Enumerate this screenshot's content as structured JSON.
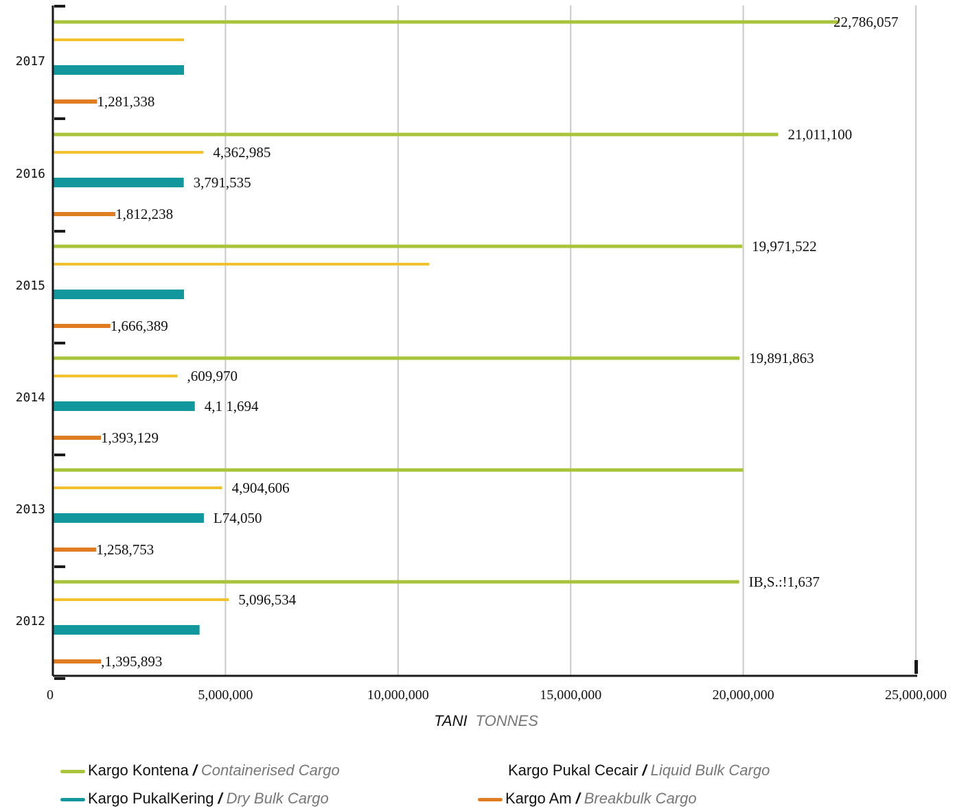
{
  "chart_data": {
    "type": "bar",
    "orientation": "horizontal",
    "categories": [
      "2017",
      "2016",
      "2015",
      "2014",
      "2013",
      "2012"
    ],
    "series": [
      {
        "name": "Kargo Kontena / Containerised Cargo",
        "values": [
          22786057,
          21011100,
          19971522,
          19891863,
          20000000,
          19881637
        ]
      },
      {
        "name": "Kargo Pukal Cecair / Liquid Bulk Cargo",
        "values": [
          3800000,
          4362985,
          10900000,
          3609970,
          4904606,
          5096534
        ]
      },
      {
        "name": "Kargo Pukal Kering / Dry Bulk Cargo",
        "values": [
          3800000,
          3791535,
          3800000,
          4111694,
          4374050,
          4250000
        ]
      },
      {
        "name": "Kargo Am / Breakbulk Cargo",
        "values": [
          1281338,
          1812238,
          1666389,
          1393129,
          1258753,
          1395893
        ]
      }
    ],
    "value_labels": [
      [
        "22,786,057",
        "",
        "",
        "1,281,338"
      ],
      [
        "21,011,100",
        "4,362,985",
        "3,791,535",
        "1,812,238"
      ],
      [
        "19,971,522",
        "",
        "",
        "1,666,389"
      ],
      [
        "19,891,863",
        ",609,970",
        "4,1  1,694",
        "1,393,129"
      ],
      [
        "",
        "4,904,606",
        "L74,050",
        "1,258,753"
      ],
      [
        "IB,S.:!1,637",
        "5,096,534",
        "",
        ",1,395,893"
      ]
    ],
    "x_ticks": [
      0,
      5000000,
      10000000,
      15000000,
      20000000,
      25000000
    ],
    "x_tick_labels": [
      "0",
      "5,000,000",
      "10,000,000",
      "15,000,000",
      "20,000,000",
      "25,000,000"
    ],
    "xlim": [
      0,
      25000000
    ],
    "xlabel_ms": "TANI",
    "xlabel_en": "TONNES",
    "grid": true,
    "legend_position": "bottom",
    "colors": {
      "containerised": "#a8c43a",
      "liquid": "#f2c12e",
      "dry": "#12989c",
      "breakbulk": "#e07d22"
    }
  },
  "legend": [
    {
      "ms": "Kargo Kontena",
      "sep": "/",
      "en": "Containerised Cargo",
      "color": "#a8c43a",
      "swatch": true
    },
    {
      "ms": "Kargo  Pukal Cecair",
      "sep": "/",
      "en": "Liquid Bulk Cargo",
      "color": "#f2c12e",
      "swatch": false
    },
    {
      "ms": "Kargo PukalKering",
      "sep": "/",
      "en": "Dry Bulk Cargo",
      "color": "#12989c",
      "swatch": true
    },
    {
      "ms": "Kargo Am",
      "sep": "/",
      "en": "Breakbulk Cargo",
      "color": "#e07d22",
      "swatch": true
    }
  ]
}
